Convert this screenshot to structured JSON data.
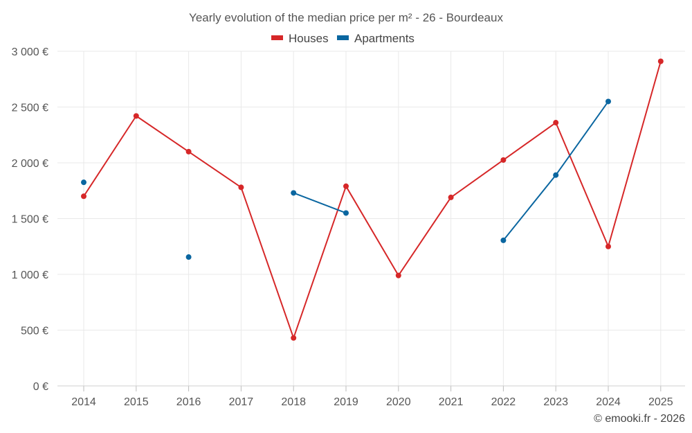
{
  "chart_data": {
    "type": "line",
    "title": "Yearly evolution of the median price per m² - 26 - Bourdeaux",
    "categories": [
      "2014",
      "2015",
      "2016",
      "2017",
      "2018",
      "2019",
      "2020",
      "2021",
      "2022",
      "2023",
      "2024",
      "2025"
    ],
    "y_ticks": [
      "0 €",
      "500 €",
      "1 000 €",
      "1 500 €",
      "2 000 €",
      "2 500 €",
      "3 000 €"
    ],
    "ylim": [
      0,
      3000
    ],
    "grid": true,
    "legend_position": "top-center",
    "series": [
      {
        "name": "Houses",
        "color": "#d62728",
        "values": [
          1700,
          2420,
          2100,
          1780,
          430,
          1790,
          990,
          1690,
          2025,
          2360,
          1250,
          2910
        ]
      },
      {
        "name": "Apartments",
        "color": "#0a66a0",
        "values": [
          1825,
          null,
          1155,
          null,
          1730,
          1550,
          null,
          null,
          1305,
          1890,
          2550,
          null
        ]
      }
    ]
  },
  "credit": "© emooki.fr - 2026"
}
